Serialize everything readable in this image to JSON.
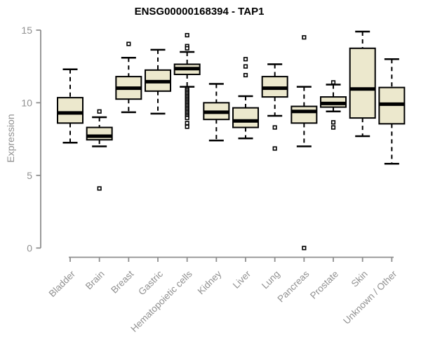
{
  "chart_data": {
    "type": "box",
    "title": "ENSG00000168394 - TAP1",
    "ylabel": "Expression",
    "xlabel": "",
    "ylim": [
      0,
      15
    ],
    "yticks": [
      15,
      10,
      5,
      0
    ],
    "grid": false,
    "legend_position": "none",
    "colors": {
      "box_fill": "#ece8cd",
      "box_stroke": "#000000",
      "median": "#000000",
      "axis": "#8f8f8f",
      "label": "#919191",
      "title": "#000000",
      "background": "#ffffff"
    },
    "categories": [
      "Bladder",
      "Brain",
      "Breast",
      "Gastric",
      "Hematopoietic cells",
      "Kidney",
      "Liver",
      "Lung",
      "Pancreas",
      "Prostate",
      "Skin",
      "Unknown / Other"
    ],
    "boxes": [
      {
        "label": "Bladder",
        "whislo": 7.25,
        "q1": 8.6,
        "med": 9.3,
        "q3": 10.35,
        "whishi": 12.3,
        "outliers": []
      },
      {
        "label": "Brain",
        "whislo": 7.0,
        "q1": 7.45,
        "med": 7.7,
        "q3": 8.3,
        "whishi": 9.0,
        "outliers": [
          9.4,
          4.1
        ]
      },
      {
        "label": "Breast",
        "whislo": 9.35,
        "q1": 10.25,
        "med": 11.0,
        "q3": 11.8,
        "whishi": 13.1,
        "outliers": [
          14.05
        ]
      },
      {
        "label": "Gastric",
        "whislo": 9.25,
        "q1": 10.8,
        "med": 11.45,
        "q3": 12.25,
        "whishi": 13.65,
        "outliers": []
      },
      {
        "label": "Hematopoietic cells",
        "whislo": 11.1,
        "q1": 11.95,
        "med": 12.35,
        "q3": 12.65,
        "whishi": 13.5,
        "outliers": [
          14.65,
          13.9,
          13.75,
          10.95,
          10.85,
          10.75,
          10.65,
          10.55,
          10.45,
          10.35,
          10.25,
          10.15,
          10.05,
          9.95,
          9.85,
          9.75,
          9.65,
          9.55,
          9.45,
          9.35,
          9.25,
          9.15,
          9.05,
          8.95,
          8.6,
          8.35
        ]
      },
      {
        "label": "Kidney",
        "whislo": 7.4,
        "q1": 8.85,
        "med": 9.35,
        "q3": 10.0,
        "whishi": 11.3,
        "outliers": []
      },
      {
        "label": "Liver",
        "whislo": 7.55,
        "q1": 8.3,
        "med": 8.75,
        "q3": 9.65,
        "whishi": 10.45,
        "outliers": [
          13.0,
          12.5,
          11.9
        ]
      },
      {
        "label": "Lung",
        "whislo": 9.1,
        "q1": 10.4,
        "med": 11.0,
        "q3": 11.8,
        "whishi": 12.65,
        "outliers": [
          8.3,
          6.85
        ]
      },
      {
        "label": "Pancreas",
        "whislo": 7.0,
        "q1": 8.6,
        "med": 9.4,
        "q3": 9.75,
        "whishi": 11.1,
        "outliers": [
          14.5,
          0
        ]
      },
      {
        "label": "Prostate",
        "whislo": 9.4,
        "q1": 9.7,
        "med": 9.95,
        "q3": 10.4,
        "whishi": 11.25,
        "outliers": [
          11.4,
          8.65,
          8.3
        ]
      },
      {
        "label": "Skin",
        "whislo": 7.7,
        "q1": 8.95,
        "med": 10.95,
        "q3": 13.75,
        "whishi": 14.9,
        "outliers": []
      },
      {
        "label": "Unknown / Other",
        "whislo": 5.8,
        "q1": 8.55,
        "med": 9.9,
        "q3": 11.05,
        "whishi": 13.0,
        "outliers": []
      }
    ]
  }
}
